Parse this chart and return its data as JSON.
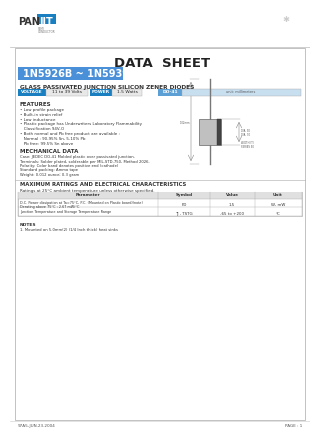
{
  "title": "DATA  SHEET",
  "part_number": "1N5926B ~ 1N5939B",
  "subtitle": "GLASS PASSIVATED JUNCTION SILICON ZENER DIODES",
  "voltage_label": "VOLTAGE",
  "voltage_value": "11 to 39 Volts",
  "power_label": "POWER",
  "power_value": "1.5 Watts",
  "do41_label": "DO-41",
  "features_title": "FEATURES",
  "mech_title": "MECHANICAL DATA",
  "max_ratings_title": "MAXIMUM RATINGS AND ELECTRICAL CHARACTERISTICS",
  "ratings_note": "Ratings at 25°C ambient temperature unless otherwise specified.",
  "table_headers": [
    "Parameter",
    "Symbol",
    "Value",
    "Unit"
  ],
  "table_row1_a": "D.C. Power dissipation at Ta=75°C, P.C. (Mounted on Plastic board)(note)",
  "table_row1_b": "Derating above 75°C : 2.67 mW/°C",
  "table_row1_sym": "PD",
  "table_row1_val": "1.5",
  "table_row1_unit": "W, mW",
  "table_row2_txt": "Junction Temperature and Storage Temperature Range",
  "table_row2_sym": "TJ , TSTG",
  "table_row2_val": "-65 to +200",
  "table_row2_unit": "°C",
  "notes_title": "NOTES",
  "notes_text": "1. Mounted on 5.0mm(2) (1/4 Inch thick) heat sinks",
  "footer_left": "97A5-JUN.23.2004",
  "footer_right": "PAGE : 1",
  "feat_lines": [
    "• Low profile package",
    "• Built-in strain relief",
    "• Low inductance",
    "• Plastic package has Underwriters Laboratory Flammability",
    "   Classification 94V-O",
    "• Both normal and Pb free product are available :",
    "   Normal : 90-95% Sn, 5-10% Pb",
    "   Pb free: 99.5% Sn above"
  ],
  "mech_lines": [
    "Case: JEDEC DO-41 Molded plastic over passivated junction.",
    "Terminals: Solder plated, solderable per MIL-STD-750, Method 2026.",
    "Polarity: Color band denotes positive end (cathode)",
    "Standard packing: Ammo tape",
    "Weight: 0.012 ounce; 0.3 gram"
  ],
  "voltage_bg": "#1a7fc1",
  "power_bg": "#1a7fc1",
  "do41_bg": "#5b9fd4",
  "part_bg": "#4a90d9",
  "badge_light": "#e8e8e8",
  "do41_light": "#c8dff0"
}
